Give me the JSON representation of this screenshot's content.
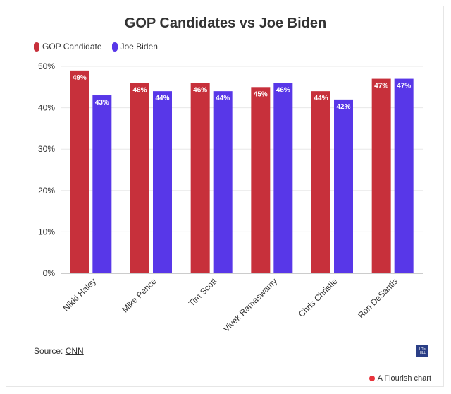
{
  "colors": {
    "gop": "#c7303b",
    "biden": "#5837e8",
    "grid": "#e8e8e8",
    "axis": "#333333"
  },
  "chart_data": {
    "type": "bar",
    "title": "GOP Candidates vs Joe Biden",
    "categories": [
      "Nikki Haley",
      "Mike Pence",
      "Tim Scott",
      "Vivek Ramaswamy",
      "Chris Christie",
      "Ron DeSantis"
    ],
    "series": [
      {
        "name": "GOP Candidate",
        "values": [
          49,
          46,
          46,
          45,
          44,
          47
        ],
        "labels": [
          "49%",
          "46%",
          "46%",
          "45%",
          "44%",
          "47%"
        ]
      },
      {
        "name": "Joe Biden",
        "values": [
          43,
          44,
          44,
          46,
          42,
          47
        ],
        "labels": [
          "43%",
          "44%",
          "44%",
          "46%",
          "42%",
          "47%"
        ]
      }
    ],
    "ylim": [
      0,
      50
    ],
    "yticks": [
      0,
      10,
      20,
      30,
      40,
      50
    ],
    "ytick_labels": [
      "0%",
      "10%",
      "20%",
      "30%",
      "40%",
      "50%"
    ],
    "xlabel": "",
    "ylabel": "",
    "legend_position": "top-left",
    "grid": true
  },
  "footer": {
    "source_prefix": "Source: ",
    "source_link": "CNN",
    "logo_text": "THE HILL",
    "flourish_label": "A Flourish chart"
  }
}
